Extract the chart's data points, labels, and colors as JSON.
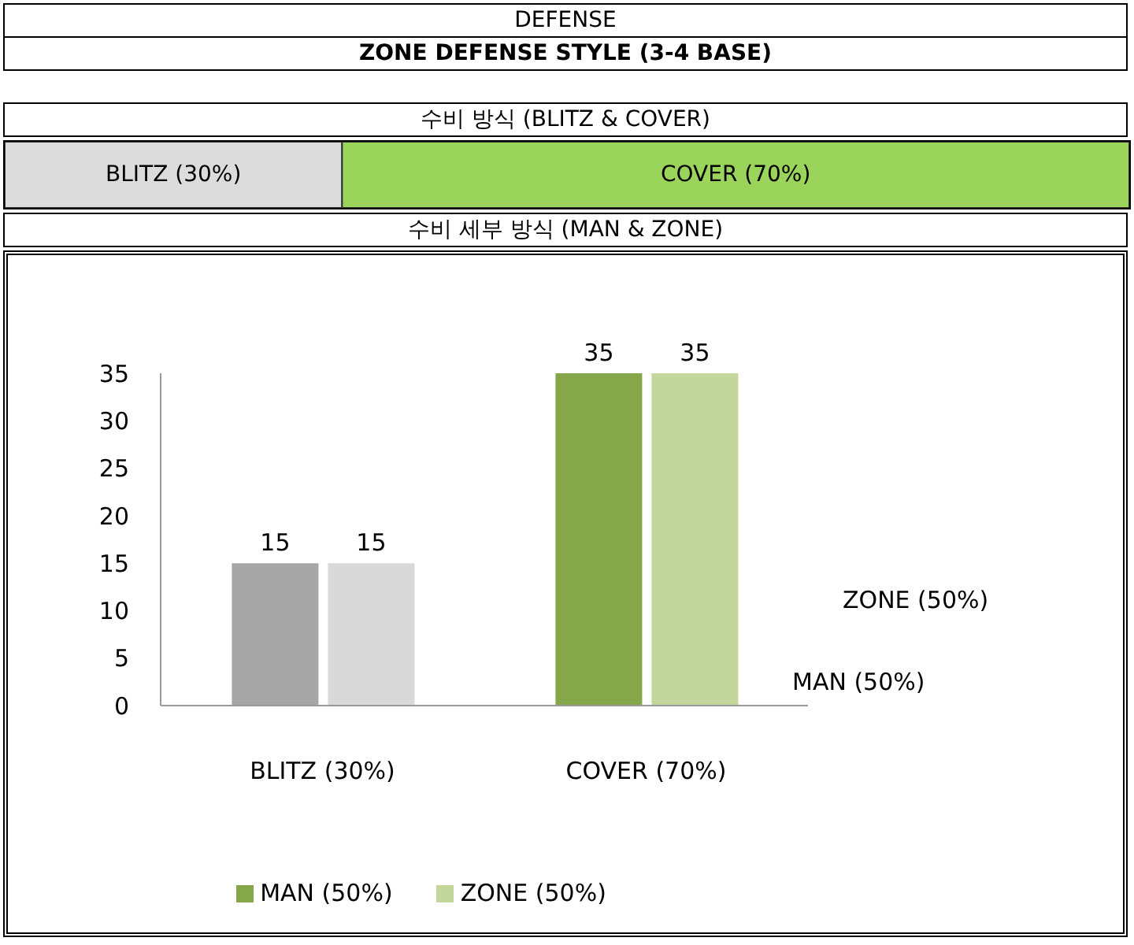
{
  "chart_data": [
    {
      "type": "other",
      "title": "DEFENSE",
      "subtitle": "ZONE DEFENSE STYLE (3-4 BASE)"
    },
    {
      "type": "bar",
      "orientation": "horizontal",
      "stacked": true,
      "title": "수비 방식 (BLITZ & COVER)",
      "categories": [
        null
      ],
      "series": [
        {
          "color": "#dcdcdc",
          "values": [
            30
          ],
          "value_labels": [
            "BLITZ (30%)"
          ]
        },
        {
          "color": "#9bd45a",
          "values": [
            70
          ],
          "value_labels": [
            "COVER (70%)"
          ]
        }
      ],
      "xlim": [
        0,
        100
      ],
      "tick_labels": false
    },
    {
      "type": "bar",
      "title": "수비 세부 방식 (MAN & ZONE)",
      "categories": [
        "BLITZ (30%)",
        "COVER (70%)"
      ],
      "series": [
        {
          "name": "MAN (50%)",
          "color": "#86a64a",
          "colors": [
            "#a6a6a6",
            "#86a64a"
          ],
          "values": [
            15,
            35
          ]
        },
        {
          "name": "ZONE (50%)",
          "color": "#c3d69b",
          "colors": [
            "#d9d9d9",
            "#c3d69b"
          ],
          "values": [
            15,
            35
          ]
        }
      ],
      "ylim": [
        0,
        35
      ],
      "yticks": [
        0,
        5,
        10,
        15,
        20,
        25,
        30,
        35
      ],
      "data_labels": true,
      "legend": "bottom"
    }
  ]
}
